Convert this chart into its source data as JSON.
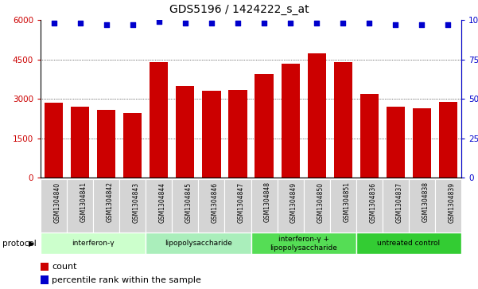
{
  "title": "GDS5196 / 1424222_s_at",
  "samples": [
    "GSM1304840",
    "GSM1304841",
    "GSM1304842",
    "GSM1304843",
    "GSM1304844",
    "GSM1304845",
    "GSM1304846",
    "GSM1304847",
    "GSM1304848",
    "GSM1304849",
    "GSM1304850",
    "GSM1304851",
    "GSM1304836",
    "GSM1304837",
    "GSM1304838",
    "GSM1304839"
  ],
  "counts": [
    2850,
    2700,
    2600,
    2450,
    4400,
    3500,
    3300,
    3350,
    3950,
    4350,
    4750,
    4400,
    3200,
    2700,
    2650,
    2900
  ],
  "percentiles": [
    98,
    98,
    97,
    97,
    99,
    98,
    98,
    98,
    98,
    98,
    98,
    98,
    98,
    97,
    97,
    97
  ],
  "bar_color": "#cc0000",
  "dot_color": "#0000cc",
  "ylim_left": [
    0,
    6000
  ],
  "ylim_right": [
    0,
    100
  ],
  "yticks_left": [
    0,
    1500,
    3000,
    4500,
    6000
  ],
  "yticks_right": [
    0,
    25,
    50,
    75,
    100
  ],
  "groups": [
    {
      "label": "interferon-γ",
      "start": 0,
      "end": 4,
      "color": "#ccffcc"
    },
    {
      "label": "lipopolysaccharide",
      "start": 4,
      "end": 8,
      "color": "#aaeebb"
    },
    {
      "label": "interferon-γ +\nlipopolysaccharide",
      "start": 8,
      "end": 12,
      "color": "#55dd55"
    },
    {
      "label": "untreated control",
      "start": 12,
      "end": 16,
      "color": "#33cc33"
    }
  ],
  "protocol_label": "protocol",
  "legend_count_label": "count",
  "legend_percentile_label": "percentile rank within the sample",
  "ticklabel_bg": "#d4d4d4"
}
